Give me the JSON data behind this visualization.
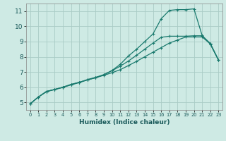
{
  "xlabel": "Humidex (Indice chaleur)",
  "background_color": "#ceeae4",
  "grid_color": "#aaccc6",
  "line_color": "#1a7a6e",
  "xlim": [
    -0.5,
    23.5
  ],
  "ylim": [
    4.5,
    11.5
  ],
  "xticks": [
    0,
    1,
    2,
    3,
    4,
    5,
    6,
    7,
    8,
    9,
    10,
    11,
    12,
    13,
    14,
    15,
    16,
    17,
    18,
    19,
    20,
    21,
    22,
    23
  ],
  "yticks": [
    5,
    6,
    7,
    8,
    9,
    10,
    11
  ],
  "series": [
    {
      "x": [
        0,
        1,
        2,
        3,
        4,
        5,
        6,
        7,
        8,
        9,
        10,
        11,
        12,
        13,
        14,
        15,
        16,
        17,
        18,
        19,
        20,
        21,
        22,
        23
      ],
      "y": [
        4.9,
        5.35,
        5.7,
        5.85,
        6.0,
        6.18,
        6.32,
        6.48,
        6.62,
        6.78,
        6.95,
        7.15,
        7.42,
        7.7,
        8.0,
        8.3,
        8.6,
        8.9,
        9.1,
        9.3,
        9.3,
        9.3,
        8.85,
        7.78
      ]
    },
    {
      "x": [
        0,
        1,
        2,
        3,
        4,
        5,
        6,
        7,
        8,
        9,
        10,
        11,
        12,
        13,
        14,
        15,
        16,
        17,
        18,
        19,
        20,
        21,
        22,
        23
      ],
      "y": [
        4.9,
        5.35,
        5.72,
        5.85,
        6.0,
        6.18,
        6.32,
        6.5,
        6.65,
        6.82,
        7.1,
        7.5,
        8.05,
        8.5,
        9.0,
        9.5,
        10.5,
        11.05,
        11.1,
        11.1,
        11.15,
        9.4,
        8.82,
        7.78
      ]
    },
    {
      "x": [
        0,
        1,
        2,
        3,
        4,
        5,
        6,
        7,
        8,
        9,
        10,
        11,
        12,
        13,
        14,
        15,
        16,
        17,
        18,
        19,
        20,
        21,
        22,
        23
      ],
      "y": [
        4.9,
        5.35,
        5.72,
        5.85,
        5.98,
        6.15,
        6.3,
        6.48,
        6.62,
        6.82,
        7.08,
        7.38,
        7.72,
        8.1,
        8.5,
        8.9,
        9.28,
        9.35,
        9.35,
        9.35,
        9.38,
        9.38,
        8.88,
        7.78
      ]
    }
  ]
}
